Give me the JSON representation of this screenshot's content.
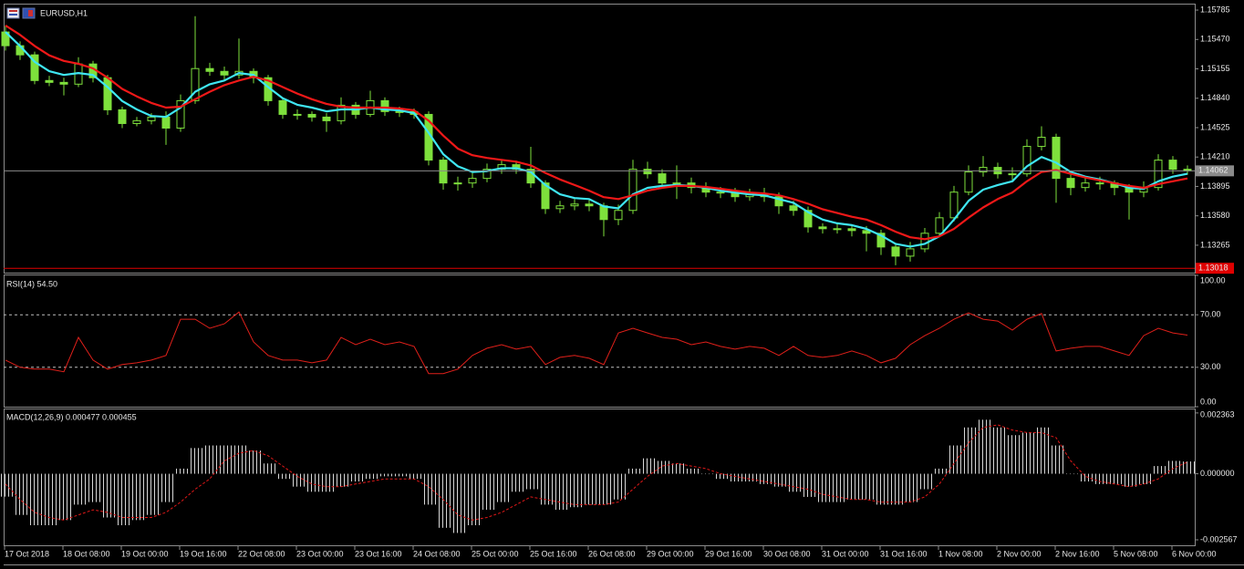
{
  "chart_data": [
    {
      "type": "candlestick",
      "title": "EURUSD,H1",
      "color": "#7ee03c",
      "categories": [
        "17 Oct 2018",
        null,
        null,
        null,
        "18 Oct 08:00",
        null,
        null,
        null,
        "19 Oct 00:00",
        null,
        null,
        null,
        "19 Oct 16:00",
        null,
        null,
        null,
        "22 Oct 08:00",
        null,
        null,
        null,
        "23 Oct 00:00",
        null,
        null,
        null,
        "23 Oct 16:00",
        null,
        null,
        null,
        "24 Oct 08:00",
        null,
        null,
        null,
        "25 Oct 00:00",
        null,
        null,
        null,
        "25 Oct 16:00",
        null,
        null,
        null,
        "26 Oct 08:00",
        null,
        null,
        null,
        "29 Oct 00:00",
        null,
        null,
        null,
        "29 Oct 16:00",
        null,
        null,
        null,
        "30 Oct 08:00",
        null,
        null,
        null,
        "31 Oct 00:00",
        null,
        null,
        null,
        "31 Oct 16:00",
        null,
        null,
        null,
        "1 Nov 08:00",
        null,
        null,
        null,
        "2 Nov 00:00",
        null,
        null,
        null,
        "2 Nov 16:00",
        null,
        null,
        null,
        "5 Nov 08:00",
        null,
        null,
        null,
        "6 Nov 00:00",
        null
      ],
      "open": [
        1.1555,
        1.15403,
        1.15305,
        1.1503,
        1.1501,
        1.14991,
        1.15207,
        1.1506,
        1.14716,
        1.14569,
        1.14599,
        1.14638,
        1.1452,
        1.14814,
        1.15158,
        1.15128,
        1.15089,
        1.15128,
        1.1506,
        1.14814,
        1.14667,
        1.14667,
        1.14638,
        1.14599,
        1.14765,
        1.14667,
        1.14814,
        1.14697,
        1.14697,
        1.14667,
        1.14177,
        1.13932,
        1.13932,
        1.13981,
        1.14079,
        1.14128,
        1.14079,
        1.13932,
        1.13657,
        1.13687,
        1.13706,
        1.13687,
        1.1354,
        1.13638,
        1.14079,
        1.1403,
        1.13932,
        1.13932,
        1.13883,
        1.13834,
        1.13834,
        1.13785,
        1.13814,
        1.13785,
        1.13687,
        1.13638,
        1.13461,
        1.13442,
        1.13442,
        1.13422,
        1.13393,
        1.13246,
        1.13148,
        1.13226,
        1.13393,
        1.13559,
        1.13834,
        1.1405,
        1.14099,
        1.1403,
        1.1403,
        1.14324,
        1.14422,
        1.13981,
        1.13883,
        1.13932,
        1.13932,
        1.13883,
        1.13834,
        1.13883,
        1.14177,
        1.14079
      ],
      "high": [
        1.1562,
        1.1545,
        1.1534,
        1.1508,
        1.1506,
        1.1528,
        1.1524,
        1.1509,
        1.1475,
        1.1464,
        1.1468,
        1.147,
        1.1488,
        1.1572,
        1.1522,
        1.1518,
        1.1548,
        1.1516,
        1.1509,
        1.1485,
        1.1472,
        1.147,
        1.1468,
        1.1485,
        1.148,
        1.1492,
        1.1485,
        1.1475,
        1.1473,
        1.147,
        1.1421,
        1.14,
        1.1404,
        1.1414,
        1.1418,
        1.1417,
        1.1432,
        1.1396,
        1.1374,
        1.1376,
        1.1376,
        1.1372,
        1.137,
        1.1418,
        1.1416,
        1.1408,
        1.1412,
        1.1399,
        1.1394,
        1.1389,
        1.1388,
        1.1387,
        1.1388,
        1.1383,
        1.1374,
        1.1368,
        1.135,
        1.135,
        1.1349,
        1.1347,
        1.1343,
        1.1328,
        1.133,
        1.1345,
        1.1362,
        1.139,
        1.1412,
        1.1422,
        1.1415,
        1.141,
        1.144,
        1.1454,
        1.1446,
        1.1402,
        1.1399,
        1.14,
        1.1396,
        1.1392,
        1.1395,
        1.1424,
        1.1422,
        1.1412
      ],
      "low": [
        1.1535,
        1.1525,
        1.1499,
        1.1497,
        1.1487,
        1.1496,
        1.1501,
        1.1466,
        1.1452,
        1.1454,
        1.1456,
        1.1434,
        1.1448,
        1.1478,
        1.1508,
        1.1504,
        1.1505,
        1.15,
        1.1476,
        1.1462,
        1.1461,
        1.1459,
        1.1448,
        1.1456,
        1.1462,
        1.1464,
        1.1465,
        1.1464,
        1.1462,
        1.1412,
        1.1386,
        1.1385,
        1.1388,
        1.1394,
        1.1403,
        1.1403,
        1.1388,
        1.136,
        1.1361,
        1.1364,
        1.1363,
        1.1336,
        1.1348,
        1.136,
        1.1398,
        1.1388,
        1.1376,
        1.1382,
        1.1378,
        1.1377,
        1.1373,
        1.1374,
        1.1373,
        1.136,
        1.1358,
        1.134,
        1.1339,
        1.1339,
        1.1336,
        1.132,
        1.1316,
        1.1305,
        1.1309,
        1.1319,
        1.1336,
        1.1352,
        1.138,
        1.14,
        1.1398,
        1.1396,
        1.14,
        1.1428,
        1.1372,
        1.138,
        1.1384,
        1.1386,
        1.138,
        1.1354,
        1.1378,
        1.1385,
        1.1403,
        1.1402
      ],
      "close": [
        1.15403,
        1.15305,
        1.1503,
        1.1501,
        1.14991,
        1.15207,
        1.1506,
        1.14716,
        1.14569,
        1.14599,
        1.14638,
        1.1452,
        1.14814,
        1.15158,
        1.15128,
        1.15089,
        1.15128,
        1.1506,
        1.14814,
        1.14667,
        1.14667,
        1.14638,
        1.14599,
        1.14765,
        1.14667,
        1.14814,
        1.14697,
        1.14697,
        1.14667,
        1.14177,
        1.13932,
        1.13932,
        1.13981,
        1.14079,
        1.14128,
        1.14079,
        1.13932,
        1.13657,
        1.13687,
        1.13706,
        1.13687,
        1.1354,
        1.13638,
        1.14079,
        1.1403,
        1.13932,
        1.13932,
        1.13883,
        1.13834,
        1.13834,
        1.13785,
        1.13814,
        1.13785,
        1.13687,
        1.13638,
        1.13461,
        1.13442,
        1.13442,
        1.13422,
        1.13393,
        1.13246,
        1.13148,
        1.13226,
        1.13393,
        1.13559,
        1.13834,
        1.1405,
        1.14099,
        1.1403,
        1.1403,
        1.14324,
        1.14422,
        1.13981,
        1.13883,
        1.13932,
        1.13932,
        1.13883,
        1.13834,
        1.13883,
        1.14177,
        1.14079,
        1.14062
      ],
      "series": [
        {
          "color": "#3fe6f2",
          "values": [
            1.1555,
            1.154,
            1.1523,
            1.1513,
            1.1509,
            1.1511,
            1.1509,
            1.1496,
            1.1481,
            1.1472,
            1.1465,
            1.1464,
            1.1474,
            1.1491,
            1.1499,
            1.1503,
            1.1511,
            1.1509,
            1.1496,
            1.1484,
            1.1477,
            1.1474,
            1.147,
            1.1472,
            1.1472,
            1.1474,
            1.1472,
            1.1471,
            1.1468,
            1.1447,
            1.1424,
            1.1411,
            1.1405,
            1.1406,
            1.1409,
            1.1409,
            1.1405,
            1.1391,
            1.1381,
            1.1377,
            1.1376,
            1.1368,
            1.1366,
            1.1381,
            1.1388,
            1.139,
            1.1391,
            1.139,
            1.1388,
            1.1385,
            1.1383,
            1.1381,
            1.138,
            1.1376,
            1.1372,
            1.1362,
            1.1354,
            1.135,
            1.1348,
            1.1344,
            1.1337,
            1.1328,
            1.1325,
            1.1328,
            1.1336,
            1.1354,
            1.1374,
            1.1386,
            1.1391,
            1.1395,
            1.1411,
            1.1421,
            1.1415,
            1.1405,
            1.14,
            1.1397,
            1.1393,
            1.1388,
            1.1387,
            1.1395,
            1.14,
            1.1403
          ]
        },
        {
          "color": "#f01818",
          "values": [
            1.1562,
            1.1552,
            1.154,
            1.153,
            1.1524,
            1.1521,
            1.1516,
            1.1506,
            1.1494,
            1.1486,
            1.1479,
            1.1474,
            1.1475,
            1.1483,
            1.1491,
            1.1498,
            1.1503,
            1.1507,
            1.1503,
            1.1496,
            1.1489,
            1.1483,
            1.1478,
            1.1475,
            1.1474,
            1.1474,
            1.1474,
            1.1473,
            1.1471,
            1.146,
            1.1444,
            1.143,
            1.1423,
            1.142,
            1.1418,
            1.1416,
            1.1412,
            1.1404,
            1.1397,
            1.1391,
            1.1385,
            1.1378,
            1.1376,
            1.138,
            1.1385,
            1.1388,
            1.139,
            1.139,
            1.1389,
            1.1387,
            1.1385,
            1.1383,
            1.1382,
            1.138,
            1.1376,
            1.1371,
            1.1365,
            1.1361,
            1.1357,
            1.1354,
            1.1348,
            1.1341,
            1.1335,
            1.1333,
            1.1336,
            1.1344,
            1.1356,
            1.1367,
            1.1376,
            1.1383,
            1.1395,
            1.1405,
            1.1407,
            1.1403,
            1.1399,
            1.1396,
            1.1393,
            1.139,
            1.1388,
            1.1392,
            1.1395,
            1.1398
          ]
        }
      ],
      "price_lines": [
        {
          "value": 1.14062,
          "color": "#8a8a8a"
        },
        {
          "value": 1.13018,
          "color": "#e00000"
        }
      ],
      "ylim": [
        1.12971,
        1.15844
      ],
      "yticks": [
        1.15785,
        {
          "value": 1.1547,
          "label": "1.15470"
        },
        1.15155,
        {
          "value": 1.1484,
          "label": "1.14840"
        },
        1.14525,
        {
          "value": 1.1421,
          "label": "1.14210"
        },
        1.13895,
        {
          "value": 1.1358,
          "label": "1.13580"
        },
        1.13265
      ]
    },
    {
      "type": "line",
      "title": "RSI(14) 54.50",
      "color": "#e0201a",
      "values": [
        35.5,
        30.0,
        28.6,
        28.6,
        26.6,
        52.8,
        35.5,
        28.6,
        32.1,
        33.4,
        35.5,
        39.0,
        66.6,
        66.6,
        59.7,
        63.1,
        72.1,
        49.3,
        39.0,
        35.5,
        35.5,
        33.4,
        35.5,
        52.8,
        47.2,
        51.4,
        47.2,
        49.3,
        45.9,
        25.2,
        25.2,
        28.6,
        39.0,
        44.5,
        47.2,
        43.8,
        45.9,
        32.1,
        37.6,
        39.0,
        36.9,
        32.1,
        56.2,
        59.7,
        56.2,
        52.8,
        51.4,
        47.2,
        49.3,
        45.9,
        43.8,
        45.9,
        44.5,
        39.0,
        45.9,
        39.0,
        37.6,
        39.0,
        42.4,
        39.0,
        33.4,
        36.9,
        47.2,
        54.1,
        59.7,
        66.6,
        71.4,
        66.6,
        65.2,
        58.3,
        66.6,
        71.0,
        42.4,
        44.5,
        45.9,
        45.9,
        42.4,
        39.0,
        54.1,
        59.7,
        56.2,
        54.5
      ],
      "ylim": [
        0,
        100
      ],
      "yticks": [
        {
          "value": 100,
          "label": "100.00"
        },
        {
          "value": 0,
          "label": "0.00"
        }
      ],
      "levels": [
        {
          "value": 70,
          "label": "70.00"
        },
        {
          "value": 30,
          "label": "30.00"
        }
      ]
    },
    {
      "type": "macd",
      "title": "MACD(12,26,9) 0.000477 0.000455",
      "color": "#d8d8d8",
      "signal_color": "#e01818",
      "values": [
        -0.00089,
        -0.0016,
        -0.002,
        -0.002,
        -0.0018,
        -0.0012,
        -0.0011,
        -0.0017,
        -0.002,
        -0.0018,
        -0.0016,
        -0.0011,
        0.0002,
        0.001,
        0.0011,
        0.0011,
        0.0011,
        0.0009,
        0.0004,
        -0.0002,
        -0.0005,
        -0.0007,
        -0.0007,
        -0.0005,
        -0.0003,
        -0.0002,
        -0.0001,
        -0.0001,
        -0.0002,
        -0.0012,
        -0.0021,
        -0.0023,
        -0.002,
        -0.0014,
        -0.0011,
        -0.0007,
        -0.0006,
        -0.0012,
        -0.0014,
        -0.0013,
        -0.0012,
        -0.0012,
        -0.001,
        0.0002,
        0.0006,
        0.0005,
        0.0004,
        0.0002,
        0.0,
        -0.0002,
        -0.0003,
        -0.0003,
        -0.0004,
        -0.0005,
        -0.0007,
        -0.0009,
        -0.0011,
        -0.0011,
        -0.001,
        -0.001,
        -0.0012,
        -0.0012,
        -0.0011,
        -0.0006,
        0.0002,
        0.0011,
        0.0018,
        0.0021,
        0.0018,
        0.0015,
        0.0016,
        0.0018,
        0.0011,
        0.0,
        -0.0003,
        -0.0004,
        -0.0004,
        -0.0005,
        -0.0004,
        0.0003,
        0.0005,
        0.000477
      ],
      "signal": [
        -0.0004,
        -0.001,
        -0.0015,
        -0.0017,
        -0.0018,
        -0.0016,
        -0.0014,
        -0.0015,
        -0.0017,
        -0.0017,
        -0.0017,
        -0.0015,
        -0.0011,
        -0.0006,
        -0.0002,
        0.0005,
        0.0008,
        0.0009,
        0.0007,
        0.0003,
        -0.0001,
        -0.0004,
        -0.0005,
        -0.0005,
        -0.0004,
        -0.0003,
        -0.0002,
        -0.0002,
        -0.0002,
        -0.0005,
        -0.001,
        -0.0016,
        -0.0018,
        -0.0017,
        -0.0015,
        -0.0012,
        -0.0009,
        -0.001,
        -0.0011,
        -0.0012,
        -0.0012,
        -0.0012,
        -0.0011,
        -0.0006,
        -0.0001,
        0.0003,
        0.0004,
        0.0003,
        0.0002,
        0.0,
        -0.0001,
        -0.0002,
        -0.0003,
        -0.0004,
        -0.0005,
        -0.0006,
        -0.0008,
        -0.0009,
        -0.001,
        -0.001,
        -0.0011,
        -0.0011,
        -0.0011,
        -0.0009,
        -0.0004,
        0.0004,
        0.0012,
        0.0018,
        0.0019,
        0.0017,
        0.0016,
        0.0016,
        0.0014,
        0.0005,
        -0.0001,
        -0.0003,
        -0.0004,
        -0.0005,
        -0.0004,
        -0.0002,
        0.0002,
        0.000455
      ],
      "ylim": [
        -0.00278,
        0.0025
      ],
      "yticks": [
        {
          "value": 0.002363,
          "label": "0.002363"
        },
        {
          "value": 0,
          "label": "0.000000"
        },
        {
          "value": -0.002567,
          "label": "-0.002567"
        }
      ]
    }
  ]
}
